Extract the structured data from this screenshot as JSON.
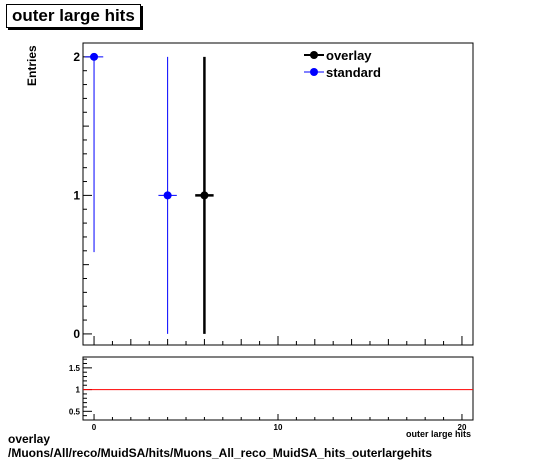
{
  "title": "outer large hits",
  "footer": {
    "line1": "overlay",
    "line2": "/Muons/All/reco/MuidSA/hits/Muons_All_reco_MuidSA_hits_outerlargehits"
  },
  "colors": {
    "overlay": "#000000",
    "standard": "#0000ff",
    "ratio_line": "#ff0000"
  },
  "chart_data": [
    {
      "type": "scatter",
      "title": "outer large hits",
      "ylabel": "Entries",
      "xlabel": "outer large hits",
      "xlim": [
        -0.6,
        20.6
      ],
      "ylim": [
        -0.08,
        2.1
      ],
      "y_ticks": [
        "0",
        "1",
        "2"
      ],
      "legend": {
        "placement": "top-right",
        "entries": [
          "overlay",
          "standard"
        ]
      },
      "series": [
        {
          "name": "overlay",
          "color": "#000000",
          "points": [
            {
              "x": 6,
              "y": 1,
              "xerr": 0.5,
              "ylow": 0,
              "yhigh": 2
            }
          ]
        },
        {
          "name": "standard",
          "color": "#0000ff",
          "points": [
            {
              "x": 0,
              "y": 2,
              "xerr": 0.5,
              "ylow": 0.59,
              "yhigh": 2
            },
            {
              "x": 4,
              "y": 1,
              "xerr": 0.5,
              "ylow": 0,
              "yhigh": 2
            }
          ]
        }
      ]
    },
    {
      "type": "line",
      "xlim": [
        -0.6,
        20.6
      ],
      "ylim": [
        0.3,
        1.75
      ],
      "x_ticks": [
        "0",
        "10",
        "20"
      ],
      "y_ticks": [
        "0.5",
        "1",
        "1.5"
      ],
      "xlabel": "outer large hits",
      "reference_line": 1
    }
  ]
}
